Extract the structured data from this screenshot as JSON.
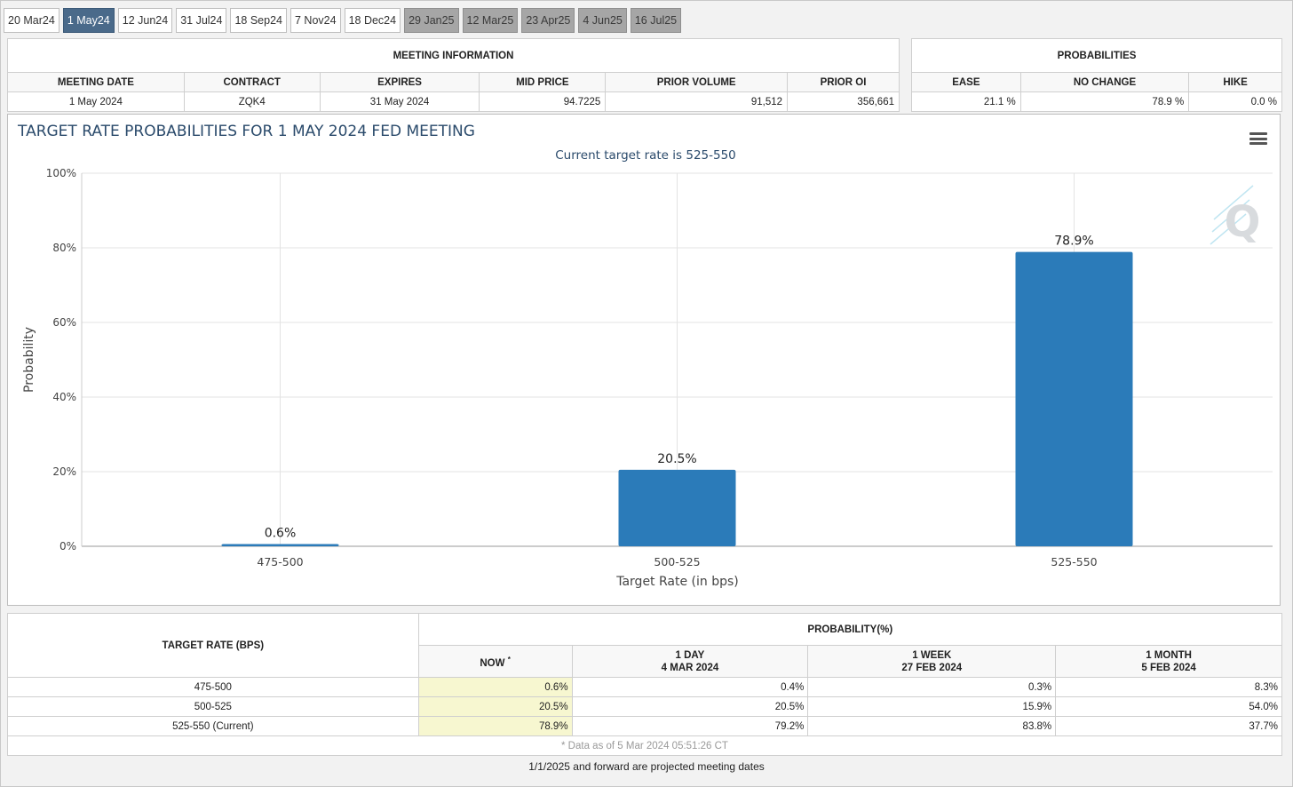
{
  "tabs": [
    {
      "label": "20 Mar24",
      "state": "normal"
    },
    {
      "label": "1 May24",
      "state": "active"
    },
    {
      "label": "12 Jun24",
      "state": "normal"
    },
    {
      "label": "31 Jul24",
      "state": "normal"
    },
    {
      "label": "18 Sep24",
      "state": "normal"
    },
    {
      "label": "7 Nov24",
      "state": "normal"
    },
    {
      "label": "18 Dec24",
      "state": "normal"
    },
    {
      "label": "29 Jan25",
      "state": "future"
    },
    {
      "label": "12 Mar25",
      "state": "future"
    },
    {
      "label": "23 Apr25",
      "state": "future"
    },
    {
      "label": "4 Jun25",
      "state": "future"
    },
    {
      "label": "16 Jul25",
      "state": "future"
    }
  ],
  "meeting_info": {
    "title": "MEETING INFORMATION",
    "headers": [
      "MEETING DATE",
      "CONTRACT",
      "EXPIRES",
      "MID PRICE",
      "PRIOR VOLUME",
      "PRIOR OI"
    ],
    "values": [
      "1 May 2024",
      "ZQK4",
      "31 May 2024",
      "94.7225",
      "91,512",
      "356,661"
    ]
  },
  "probabilities": {
    "title": "PROBABILITIES",
    "headers": [
      "EASE",
      "NO CHANGE",
      "HIKE"
    ],
    "values": [
      "21.1 %",
      "78.9 %",
      "0.0 %"
    ]
  },
  "chart_data": {
    "type": "bar",
    "title": "TARGET RATE PROBABILITIES FOR 1 MAY 2024 FED MEETING",
    "subtitle": "Current target rate is 525-550",
    "xlabel": "Target Rate (in bps)",
    "ylabel": "Probability",
    "categories": [
      "475-500",
      "500-525",
      "525-550"
    ],
    "values": [
      0.6,
      20.5,
      78.9
    ],
    "data_labels": [
      "0.6%",
      "20.5%",
      "78.9%"
    ],
    "ylim": [
      0,
      100
    ],
    "yticks": [
      "0%",
      "20%",
      "40%",
      "60%",
      "80%",
      "100%"
    ],
    "bar_color": "#2b7bb9",
    "grid": true
  },
  "prob_table": {
    "target_header": "TARGET RATE (BPS)",
    "prob_header": "PROBABILITY(%)",
    "columns": [
      {
        "l1": "NOW",
        "sup": "*",
        "l2": ""
      },
      {
        "l1": "1 DAY",
        "l2": "4 MAR 2024"
      },
      {
        "l1": "1 WEEK",
        "l2": "27 FEB 2024"
      },
      {
        "l1": "1 MONTH",
        "l2": "5 FEB 2024"
      }
    ],
    "rows": [
      {
        "rate": "475-500",
        "cells": [
          "0.6%",
          "0.4%",
          "0.3%",
          "8.3%"
        ]
      },
      {
        "rate": "500-525",
        "cells": [
          "20.5%",
          "20.5%",
          "15.9%",
          "54.0%"
        ]
      },
      {
        "rate": "525-550 (Current)",
        "cells": [
          "78.9%",
          "79.2%",
          "83.8%",
          "37.7%"
        ]
      }
    ],
    "as_of": "* Data as of 5 Mar 2024 05:51:26 CT"
  },
  "footer": "1/1/2025 and forward are projected meeting dates"
}
